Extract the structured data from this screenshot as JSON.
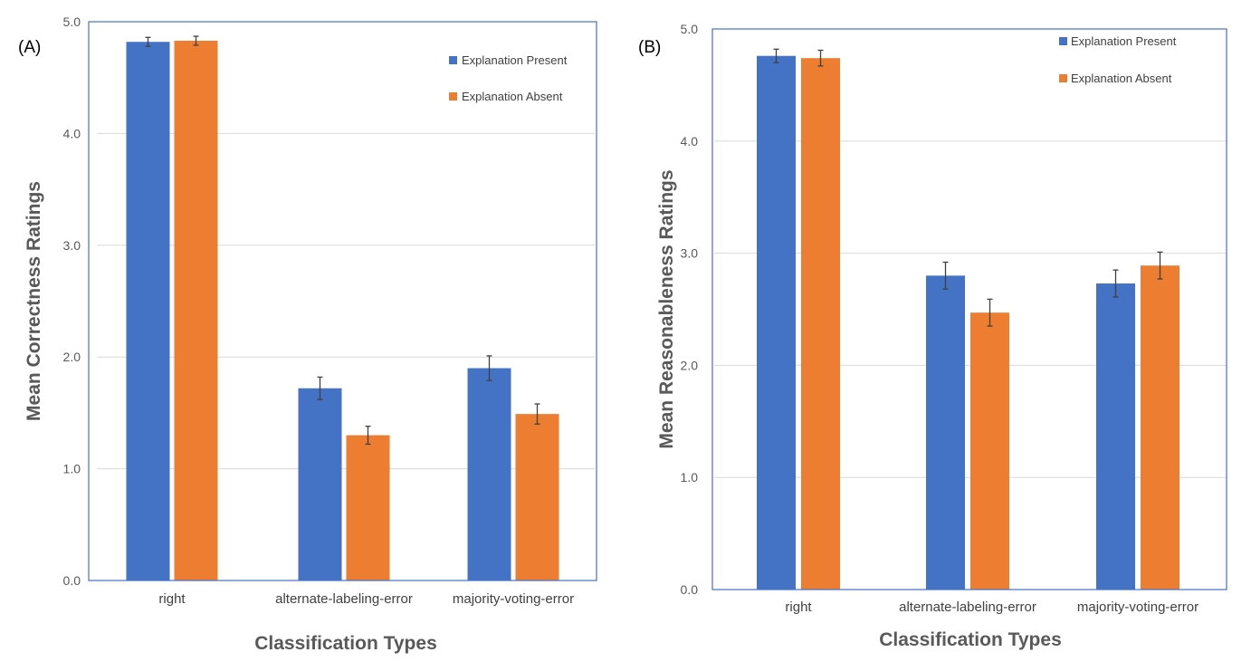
{
  "chart_data": [
    {
      "type": "bar",
      "panel_label": "(A)",
      "categories": [
        "right",
        "alternate-labeling-error",
        "majority-voting-error"
      ],
      "series": [
        {
          "name": "Explanation Present",
          "color": "#4472c4",
          "values": [
            4.82,
            1.72,
            1.9
          ],
          "errors": [
            0.04,
            0.1,
            0.11
          ]
        },
        {
          "name": "Explanation Absent",
          "color": "#ed7d31",
          "values": [
            4.83,
            1.3,
            1.49
          ],
          "errors": [
            0.04,
            0.08,
            0.09
          ]
        }
      ],
      "ylim": [
        0,
        5
      ],
      "yticks": [
        "0.0",
        "1.0",
        "2.0",
        "3.0",
        "4.0",
        "5.0"
      ],
      "xlabel": "Classification Types",
      "ylabel": "Mean Correctness Ratings",
      "grid": true,
      "legend": "top-right"
    },
    {
      "type": "bar",
      "panel_label": "(B)",
      "categories": [
        "right",
        "alternate-labeling-error",
        "majority-voting-error"
      ],
      "series": [
        {
          "name": "Explanation Present",
          "color": "#4472c4",
          "values": [
            4.76,
            2.8,
            2.73
          ],
          "errors": [
            0.06,
            0.12,
            0.12
          ]
        },
        {
          "name": "Explanation Absent",
          "color": "#ed7d31",
          "values": [
            4.74,
            2.47,
            2.89
          ],
          "errors": [
            0.07,
            0.12,
            0.12
          ]
        }
      ],
      "ylim": [
        0,
        5
      ],
      "yticks": [
        "0.0",
        "1.0",
        "2.0",
        "3.0",
        "4.0",
        "5.0"
      ],
      "xlabel": "Classification Types",
      "ylabel": "Mean Reasonableness Ratings",
      "grid": true,
      "legend": "top-right"
    }
  ]
}
